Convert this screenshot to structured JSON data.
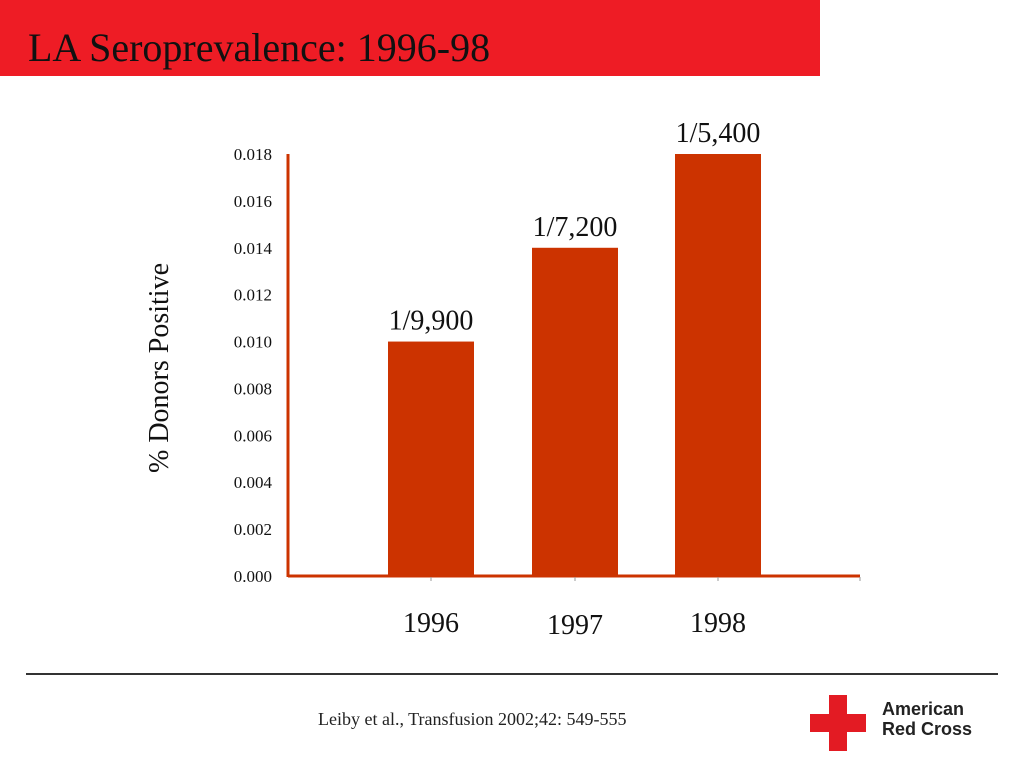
{
  "slide": {
    "title": "LA Seroprevalence: 1996-98",
    "citation": "Leiby et al., Transfusion 2002;42: 549-555",
    "logo": {
      "line1": "American",
      "line2": "Red Cross",
      "icon": "red-cross-icon"
    },
    "colors": {
      "title_bar": "#ee1c25",
      "bar": "#cc3300",
      "axis": "#cc3300",
      "logo_cross": "#e31b23"
    }
  },
  "chart_data": {
    "type": "bar",
    "categories": [
      "1996",
      "1997",
      "1998"
    ],
    "values": [
      0.01,
      0.014,
      0.018
    ],
    "data_labels": [
      "1/9,900",
      "1/7,200",
      "1/5,400"
    ],
    "ylabel": "% Donors Positive",
    "xlabel": "",
    "ylim": [
      0,
      0.018
    ],
    "yticks": [
      "0.000",
      "0.002",
      "0.004",
      "0.006",
      "0.008",
      "0.010",
      "0.012",
      "0.014",
      "0.016",
      "0.018"
    ],
    "grid": false,
    "legend": "none"
  }
}
